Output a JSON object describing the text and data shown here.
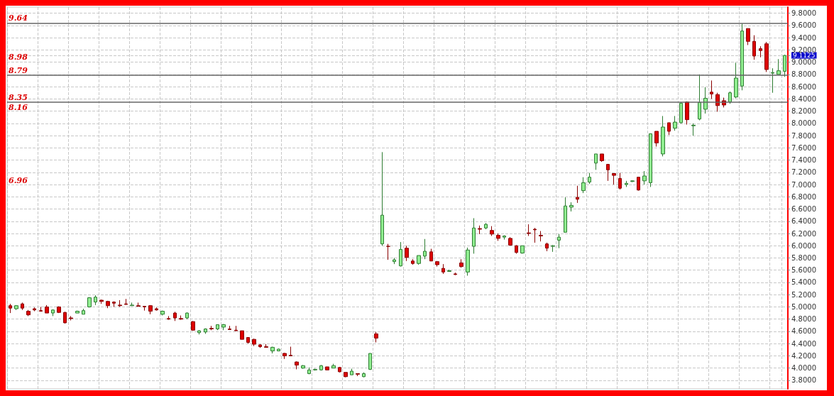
{
  "chart_data": {
    "type": "candlestick",
    "categories": [
      null,
      null,
      null,
      null,
      null,
      null,
      null,
      null,
      null,
      null,
      null,
      null,
      null,
      null,
      null,
      null,
      null,
      null,
      null,
      null,
      null,
      null,
      null,
      null,
      null,
      null,
      null,
      null,
      null,
      null,
      null,
      null,
      null,
      null,
      null,
      null,
      null,
      null,
      null,
      null,
      null,
      null,
      null,
      null,
      null,
      null,
      null,
      null,
      null,
      null,
      null,
      null,
      null,
      null,
      null,
      null,
      null,
      null,
      null,
      null,
      null,
      null,
      null,
      null,
      null,
      null,
      null,
      null,
      null,
      null,
      null,
      null,
      null,
      null,
      null,
      null,
      null,
      null,
      null,
      null,
      null,
      null,
      null,
      null,
      null,
      null,
      null,
      null,
      null,
      null,
      null,
      null,
      null,
      null,
      null,
      null,
      null,
      null,
      null,
      null,
      null,
      null,
      null,
      null,
      null,
      null,
      null,
      null,
      null,
      null,
      null,
      null,
      null,
      null,
      null,
      null,
      null,
      null,
      null,
      null,
      null,
      null,
      null,
      null,
      null,
      null,
      null,
      null
    ],
    "ohlc": [
      [
        5.02,
        5.05,
        4.9,
        4.98
      ],
      [
        4.97,
        5.03,
        4.95,
        5.02
      ],
      [
        5.05,
        5.07,
        4.95,
        4.98
      ],
      [
        4.93,
        4.95,
        4.85,
        4.87
      ],
      [
        4.97,
        4.99,
        4.93,
        4.95
      ],
      [
        4.94,
        5.0,
        4.93,
        4.93
      ],
      [
        5.0,
        5.03,
        4.9,
        4.9
      ],
      [
        4.9,
        4.96,
        4.85,
        4.95
      ],
      [
        5.0,
        5.01,
        4.9,
        4.91
      ],
      [
        4.91,
        4.92,
        4.73,
        4.74
      ],
      [
        4.82,
        4.85,
        4.78,
        4.81
      ],
      [
        4.9,
        4.94,
        4.9,
        4.93
      ],
      [
        4.88,
        4.97,
        4.88,
        4.94
      ],
      [
        5.0,
        5.16,
        4.99,
        5.15
      ],
      [
        5.08,
        5.19,
        5.03,
        5.16
      ],
      [
        5.11,
        5.12,
        5.05,
        5.09
      ],
      [
        5.09,
        5.1,
        4.98,
        5.02
      ],
      [
        5.08,
        5.09,
        5.0,
        5.06
      ],
      [
        5.03,
        5.11,
        5.0,
        5.02
      ],
      [
        5.05,
        5.13,
        5.04,
        5.04
      ],
      [
        5.02,
        5.07,
        5.02,
        5.03
      ],
      [
        5.02,
        5.07,
        5.01,
        5.01
      ],
      [
        5.01,
        5.01,
        4.94,
        5.0
      ],
      [
        5.02,
        5.03,
        4.88,
        4.93
      ],
      [
        4.97,
        4.99,
        4.94,
        4.95
      ],
      [
        4.88,
        4.94,
        4.86,
        4.93
      ],
      [
        4.81,
        4.85,
        4.79,
        4.8
      ],
      [
        4.9,
        4.92,
        4.77,
        4.82
      ],
      [
        4.81,
        4.86,
        4.79,
        4.8
      ],
      [
        4.82,
        4.91,
        4.8,
        4.9
      ],
      [
        4.76,
        4.77,
        4.61,
        4.62
      ],
      [
        4.58,
        4.62,
        4.55,
        4.61
      ],
      [
        4.59,
        4.65,
        4.56,
        4.64
      ],
      [
        4.65,
        4.69,
        4.62,
        4.64
      ],
      [
        4.64,
        4.71,
        4.62,
        4.71
      ],
      [
        4.67,
        4.72,
        4.62,
        4.71
      ],
      [
        4.64,
        4.69,
        4.63,
        4.63
      ],
      [
        4.62,
        4.69,
        4.61,
        4.61
      ],
      [
        4.61,
        4.61,
        4.47,
        4.47
      ],
      [
        4.5,
        4.5,
        4.4,
        4.42
      ],
      [
        4.47,
        4.48,
        4.36,
        4.39
      ],
      [
        4.38,
        4.39,
        4.33,
        4.35
      ],
      [
        4.35,
        4.39,
        4.34,
        4.34
      ],
      [
        4.28,
        4.35,
        4.24,
        4.34
      ],
      [
        4.28,
        4.32,
        4.28,
        4.31
      ],
      [
        4.24,
        4.25,
        4.15,
        4.2
      ],
      [
        4.21,
        4.35,
        4.2,
        4.2
      ],
      [
        4.1,
        4.11,
        3.98,
        4.05
      ],
      [
        4.0,
        4.05,
        3.99,
        4.04
      ],
      [
        3.91,
        4.01,
        3.9,
        3.97
      ],
      [
        3.97,
        3.99,
        3.96,
        3.98
      ],
      [
        3.97,
        4.05,
        3.96,
        4.04
      ],
      [
        4.02,
        4.02,
        3.97,
        3.97
      ],
      [
        4.0,
        4.07,
        4.0,
        4.04
      ],
      [
        4.01,
        4.02,
        3.93,
        3.94
      ],
      [
        3.93,
        3.93,
        3.85,
        3.86
      ],
      [
        3.89,
        3.99,
        3.89,
        3.95
      ],
      [
        3.91,
        3.91,
        3.87,
        3.9
      ],
      [
        3.86,
        3.93,
        3.85,
        3.91
      ],
      [
        3.98,
        4.24,
        3.97,
        4.24
      ],
      [
        4.56,
        4.59,
        4.42,
        4.49
      ],
      [
        6.03,
        7.53,
        6.0,
        6.5
      ],
      [
        5.99,
        6.03,
        5.77,
        5.99
      ],
      [
        5.74,
        5.8,
        5.7,
        5.77
      ],
      [
        5.67,
        6.06,
        5.66,
        5.94
      ],
      [
        5.96,
        6.0,
        5.75,
        5.81
      ],
      [
        5.75,
        5.78,
        5.69,
        5.71
      ],
      [
        5.71,
        5.84,
        5.69,
        5.84
      ],
      [
        5.83,
        6.11,
        5.78,
        5.91
      ],
      [
        5.9,
        5.95,
        5.75,
        5.75
      ],
      [
        5.74,
        5.75,
        5.66,
        5.69
      ],
      [
        5.63,
        5.7,
        5.54,
        5.57
      ],
      [
        5.58,
        5.61,
        5.58,
        5.59
      ],
      [
        5.54,
        5.56,
        5.52,
        5.53
      ],
      [
        5.72,
        5.78,
        5.64,
        5.66
      ],
      [
        5.57,
        5.97,
        5.51,
        5.93
      ],
      [
        5.99,
        6.45,
        5.87,
        6.29
      ],
      [
        6.28,
        6.33,
        6.19,
        6.27
      ],
      [
        6.29,
        6.37,
        6.27,
        6.35
      ],
      [
        6.25,
        6.32,
        6.16,
        6.19
      ],
      [
        6.17,
        6.2,
        6.08,
        6.12
      ],
      [
        6.14,
        6.17,
        6.1,
        6.16
      ],
      [
        6.12,
        6.14,
        6.0,
        6.01
      ],
      [
        6.0,
        6.01,
        5.87,
        5.89
      ],
      [
        5.88,
        6.0,
        5.87,
        6.0
      ],
      [
        6.21,
        6.35,
        6.16,
        6.2
      ],
      [
        6.27,
        6.29,
        6.05,
        6.26
      ],
      [
        6.17,
        6.24,
        6.07,
        6.16
      ],
      [
        6.03,
        6.05,
        5.91,
        5.96
      ],
      [
        5.99,
        6.01,
        5.9,
        6.0
      ],
      [
        6.09,
        6.19,
        5.96,
        6.14
      ],
      [
        6.22,
        6.79,
        6.22,
        6.65
      ],
      [
        6.63,
        6.71,
        6.56,
        6.66
      ],
      [
        6.79,
        6.98,
        6.7,
        6.76
      ],
      [
        6.9,
        7.12,
        6.86,
        7.03
      ],
      [
        7.04,
        7.19,
        7.01,
        7.12
      ],
      [
        7.35,
        7.5,
        7.24,
        7.5
      ],
      [
        7.5,
        7.5,
        7.37,
        7.39
      ],
      [
        7.33,
        7.33,
        7.06,
        7.24
      ],
      [
        7.18,
        7.18,
        7.0,
        7.15
      ],
      [
        7.1,
        7.19,
        6.92,
        6.94
      ],
      [
        7.0,
        7.06,
        6.96,
        7.02
      ],
      [
        7.05,
        7.07,
        7.04,
        7.06
      ],
      [
        7.12,
        7.12,
        6.9,
        6.91
      ],
      [
        7.06,
        7.22,
        7.0,
        7.14
      ],
      [
        7.03,
        7.83,
        6.96,
        7.83
      ],
      [
        7.87,
        7.87,
        7.62,
        7.68
      ],
      [
        7.5,
        8.12,
        7.46,
        7.94
      ],
      [
        8.01,
        8.01,
        7.81,
        7.87
      ],
      [
        7.92,
        8.12,
        7.88,
        8.02
      ],
      [
        8.01,
        8.34,
        8.0,
        8.33
      ],
      [
        8.35,
        8.36,
        7.98,
        8.06
      ],
      [
        7.96,
        8.0,
        7.8,
        7.97
      ],
      [
        8.07,
        8.8,
        8.05,
        8.34
      ],
      [
        8.23,
        8.59,
        8.16,
        8.41
      ],
      [
        8.51,
        8.7,
        8.4,
        8.48
      ],
      [
        8.47,
        8.5,
        8.19,
        8.29
      ],
      [
        8.37,
        8.42,
        8.26,
        8.3
      ],
      [
        8.35,
        8.52,
        8.32,
        8.5
      ],
      [
        8.43,
        8.99,
        8.41,
        8.74
      ],
      [
        8.61,
        9.63,
        8.54,
        9.51
      ],
      [
        9.55,
        9.55,
        9.28,
        9.34
      ],
      [
        9.34,
        9.44,
        9.04,
        9.1
      ],
      [
        9.22,
        9.26,
        9.08,
        9.19
      ],
      [
        9.3,
        9.33,
        8.84,
        8.88
      ],
      [
        8.82,
        8.9,
        8.5,
        8.83
      ],
      [
        8.8,
        9.05,
        8.8,
        8.86
      ],
      [
        8.85,
        9.12,
        8.76,
        9.11
      ]
    ],
    "ylim": [
      3.66,
      9.9
    ],
    "yticks": [
      {
        "value": 3.8,
        "label": "3.8000"
      },
      {
        "value": 4.0,
        "label": "4.0000"
      },
      {
        "value": 4.2,
        "label": "4.2000"
      },
      {
        "value": 4.4,
        "label": "4.4000"
      },
      {
        "value": 4.6,
        "label": "4.6000"
      },
      {
        "value": 4.8,
        "label": "4.8000"
      },
      {
        "value": 5.0,
        "label": "5.0000"
      },
      {
        "value": 5.2,
        "label": "5.2000"
      },
      {
        "value": 5.4,
        "label": "5.4000"
      },
      {
        "value": 5.6,
        "label": "5.6000"
      },
      {
        "value": 5.8,
        "label": "5.8000"
      },
      {
        "value": 6.0,
        "label": "6.0000"
      },
      {
        "value": 6.2,
        "label": "6.2000"
      },
      {
        "value": 6.4,
        "label": "6.4000"
      },
      {
        "value": 6.6,
        "label": "6.6000"
      },
      {
        "value": 6.8,
        "label": "6.8000"
      },
      {
        "value": 7.0,
        "label": "7.0000"
      },
      {
        "value": 7.2,
        "label": "7.2000"
      },
      {
        "value": 7.4,
        "label": "7.4000"
      },
      {
        "value": 7.6,
        "label": "7.6000"
      },
      {
        "value": 7.8,
        "label": "7.8000"
      },
      {
        "value": 8.0,
        "label": "8.0000"
      },
      {
        "value": 8.2,
        "label": "8.2000"
      },
      {
        "value": 8.4,
        "label": "8.4000"
      },
      {
        "value": 8.6,
        "label": "8.6000"
      },
      {
        "value": 8.8,
        "label": "8.8000"
      },
      {
        "value": 9.0,
        "label": "9.0000"
      },
      9.1125,
      {
        "value": 9.2,
        "label": "9.2000"
      },
      {
        "value": 9.4,
        "label": "9.4000"
      },
      {
        "value": 9.6,
        "label": "9.6000"
      },
      {
        "value": 9.8,
        "label": "9.8000"
      }
    ],
    "ref_lines": [
      {
        "axis": "y",
        "value": 9.64,
        "label": "9.64",
        "color": "#666666"
      },
      {
        "axis": "y",
        "value": 8.79,
        "label": "8.79",
        "color": "#666666"
      },
      {
        "axis": "y",
        "value": 8.35,
        "label": "8.35",
        "color": "#666666"
      }
    ],
    "annotations": [
      "8.98",
      "8.16",
      "6.96"
    ],
    "grid": true,
    "tick_labels": "y"
  }
}
